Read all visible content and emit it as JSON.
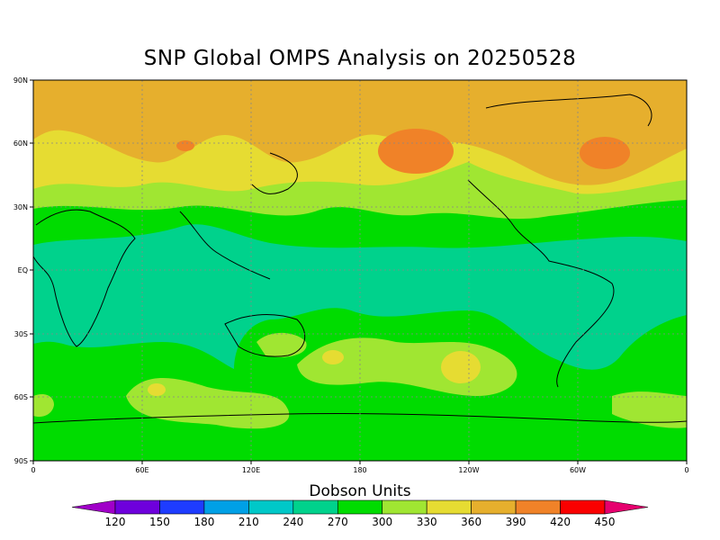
{
  "title": "SNP Global OMPS Analysis on 20250528",
  "map": {
    "lat_ticks": [
      "90N",
      "60N",
      "30N",
      "EQ",
      "30S",
      "60S",
      "90S"
    ],
    "lon_ticks": [
      "0",
      "60E",
      "120E",
      "180",
      "120W",
      "60W",
      "0"
    ]
  },
  "colorbar": {
    "title": "Dobson Units",
    "levels": [
      "120",
      "150",
      "180",
      "210",
      "240",
      "270",
      "300",
      "330",
      "360",
      "390",
      "420",
      "450"
    ],
    "colors": [
      "#a000c8",
      "#6e00dc",
      "#1e3cff",
      "#00a0e6",
      "#00c8c8",
      "#00d28c",
      "#00dc00",
      "#a0e632",
      "#e6dc32",
      "#e6af2d",
      "#f08228",
      "#fa0000",
      "#e6006e"
    ]
  }
}
